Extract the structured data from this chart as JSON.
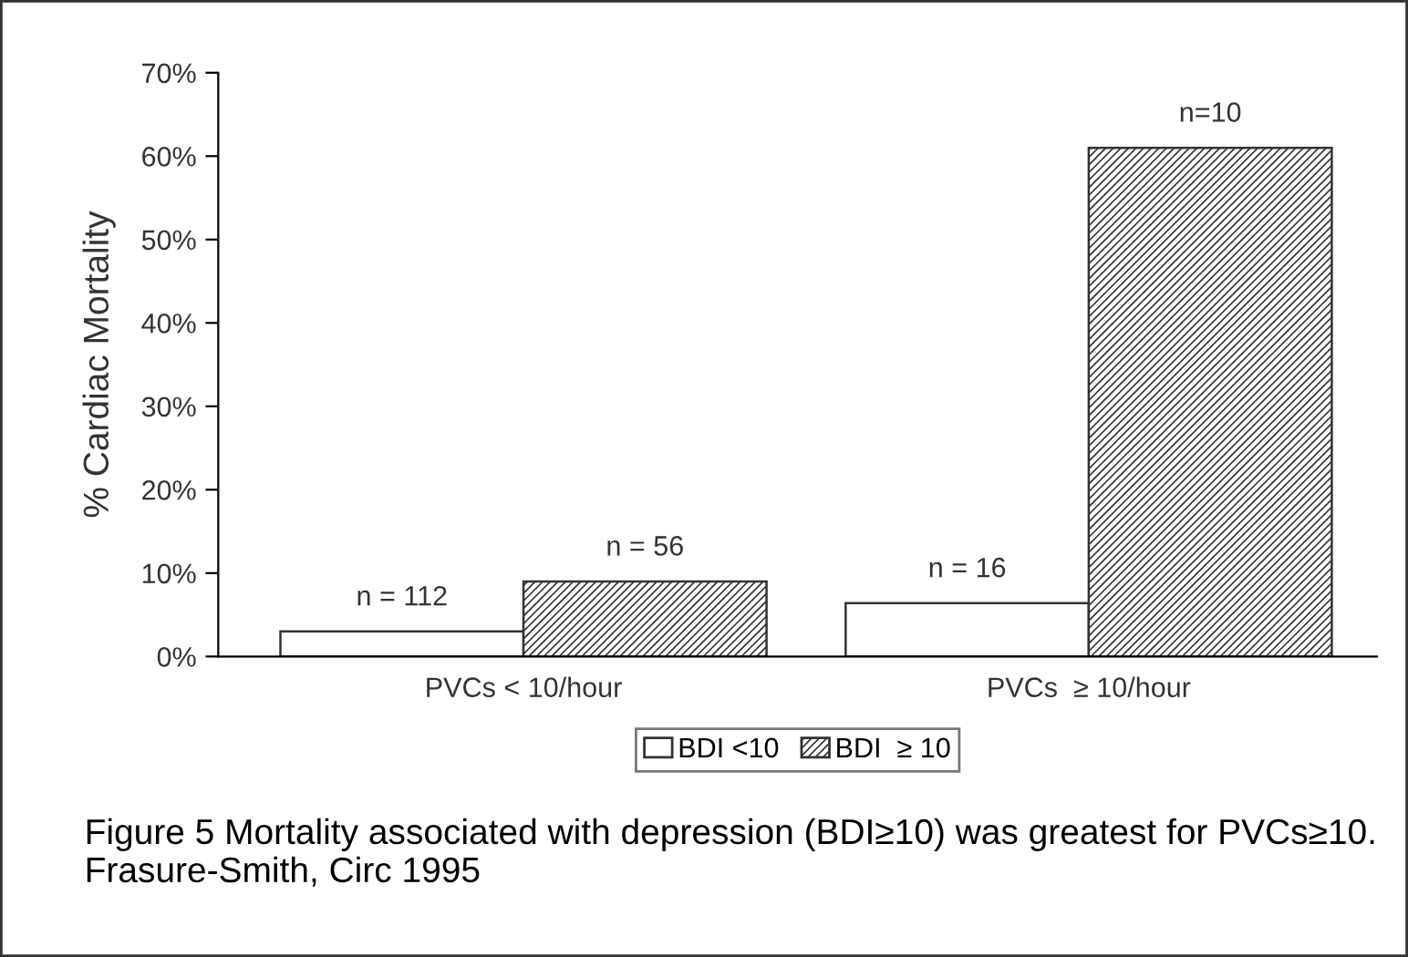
{
  "chart_data": {
    "type": "bar",
    "ylabel": "% Cardiac Mortality",
    "categories": [
      "PVCs < 10/hour",
      "PVCs  ≥ 10/hour"
    ],
    "series": [
      {
        "name": "BDI <10",
        "color": "#ffffff",
        "values": [
          3,
          6.4
        ]
      },
      {
        "name": "BDI  ≥ 10",
        "color": "#333333",
        "values": [
          9,
          61
        ]
      }
    ],
    "ylim": [
      0,
      70
    ],
    "yticks": [
      {
        "value": 0,
        "label": "0%"
      },
      {
        "value": 10,
        "label": "10%"
      },
      {
        "value": 20,
        "label": "20%"
      },
      {
        "value": 30,
        "label": "30%"
      },
      {
        "value": 40,
        "label": "40%"
      },
      {
        "value": 50,
        "label": "50%"
      },
      {
        "value": 60,
        "label": "60%"
      },
      {
        "value": 70,
        "label": "70%"
      }
    ],
    "legend": "bottom",
    "annotations": [
      "n = 112",
      "n = 56",
      "n = 16",
      "n=10",
      "Figure 5 Mortality associated with depression (BDI≥10) was greatest for PVCs≥10. Frasure-Smith, Circ 1995"
    ]
  }
}
